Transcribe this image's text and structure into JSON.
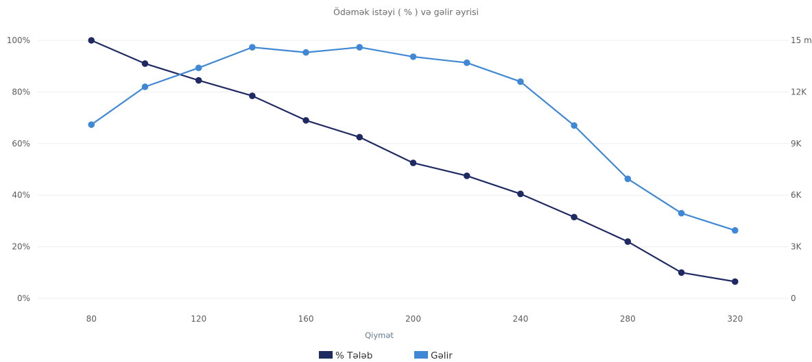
{
  "chart_data": {
    "type": "line",
    "title": "Ödəmək istəyi ( % ) və gəlir əyrisi",
    "xlabel": "Qiymət",
    "x": [
      80,
      100,
      120,
      140,
      160,
      180,
      200,
      220,
      240,
      260,
      280,
      300,
      320
    ],
    "x_ticks": [
      80,
      120,
      160,
      200,
      240,
      280,
      320
    ],
    "x_tick_labels": [
      "80",
      "120",
      "160",
      "200",
      "240",
      "280",
      "320"
    ],
    "xlim": [
      60,
      340
    ],
    "y_left": {
      "lim": [
        0,
        100
      ],
      "ticks": [
        0,
        20,
        40,
        60,
        80,
        100
      ],
      "tick_labels": [
        "0%",
        "20%",
        "40%",
        "60%",
        "80%",
        "100%"
      ]
    },
    "y_right": {
      "lim": [
        0,
        15000
      ],
      "ticks": [
        0,
        3000,
        6000,
        9000,
        12000,
        15000
      ],
      "tick_labels": [
        "0",
        "3K",
        "6K",
        "9K",
        "12K",
        "15 min"
      ]
    },
    "series": [
      {
        "name": "% Tələb",
        "axis": "left",
        "color": "#1f2a63",
        "values": [
          100,
          91,
          84.5,
          78.5,
          69,
          62.5,
          52.5,
          47.5,
          40.5,
          31.5,
          22,
          10,
          6.5
        ]
      },
      {
        "name": "Gəlir",
        "axis": "right",
        "color": "#3f88d5",
        "values": [
          10100,
          12300,
          13400,
          14600,
          14300,
          14600,
          14050,
          13700,
          12600,
          10050,
          6950,
          4950,
          3950
        ]
      }
    ],
    "grid": true,
    "legend": "bottom-center"
  }
}
